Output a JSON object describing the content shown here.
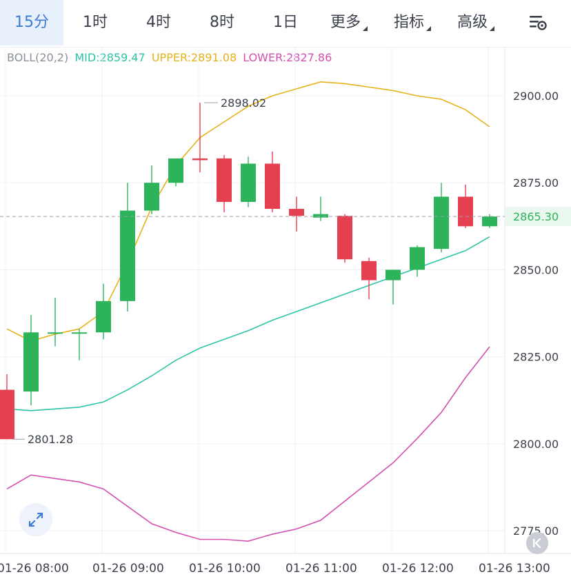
{
  "tabs": [
    {
      "label": "15分",
      "active": true,
      "dropdown": false
    },
    {
      "label": "1时",
      "active": false,
      "dropdown": false
    },
    {
      "label": "4时",
      "active": false,
      "dropdown": false
    },
    {
      "label": "8时",
      "active": false,
      "dropdown": false
    },
    {
      "label": "1日",
      "active": false,
      "dropdown": false
    },
    {
      "label": "更多",
      "active": false,
      "dropdown": true
    },
    {
      "label": "指标",
      "active": false,
      "dropdown": true
    },
    {
      "label": "高级",
      "active": false,
      "dropdown": true
    }
  ],
  "legend": {
    "name": "BOLL(20,2)",
    "mid": "MID:2859.47",
    "upper": "UPPER:2891.08",
    "lower": "LOWER:2827.86"
  },
  "colors": {
    "up": "#2db35a",
    "down": "#e5404f",
    "mid": "#2cc4a6",
    "upper": "#e6b21a",
    "lower": "#d34fb0",
    "accent": "#3a7bd5",
    "grid": "#eef0f4"
  },
  "icons": {
    "settings": "settings-gear-icon",
    "expand": "expand-arrows-icon",
    "back": "skip-back-icon"
  },
  "chart_data": {
    "type": "candlestick",
    "y_axis_labels": [
      "2900.00",
      "2875.00",
      "2865.30",
      "2850.00",
      "2825.00",
      "2800.00",
      "2775.00"
    ],
    "x_axis_labels": [
      "01-26 08:00",
      "01-26 09:00",
      "01-26 10:00",
      "01-26 11:00",
      "01-26 12:00",
      "01-26 13:00"
    ],
    "ylim": [
      2771,
      2926
    ],
    "last_price": "2865.30",
    "high_label": "2898.02",
    "low_label": "2801.28",
    "candles": [
      {
        "o": 2815.5,
        "h": 2820.0,
        "l": 2801.3,
        "c": 2801.3
      },
      {
        "o": 2815.0,
        "h": 2837.0,
        "l": 2811.0,
        "c": 2832.0
      },
      {
        "o": 2832.0,
        "h": 2842.0,
        "l": 2828.0,
        "c": 2832.0
      },
      {
        "o": 2832.0,
        "h": 2833.0,
        "l": 2824.0,
        "c": 2832.0
      },
      {
        "o": 2832.0,
        "h": 2846.0,
        "l": 2830.0,
        "c": 2841.0
      },
      {
        "o": 2841.0,
        "h": 2875.0,
        "l": 2838.0,
        "c": 2867.0
      },
      {
        "o": 2867.0,
        "h": 2880.0,
        "l": 2866.0,
        "c": 2875.0
      },
      {
        "o": 2875.0,
        "h": 2882.0,
        "l": 2874.0,
        "c": 2882.0
      },
      {
        "o": 2882.0,
        "h": 2898.02,
        "l": 2878.0,
        "c": 2881.5
      },
      {
        "o": 2882.0,
        "h": 2883.0,
        "l": 2866.5,
        "c": 2869.5
      },
      {
        "o": 2869.5,
        "h": 2882.5,
        "l": 2868.0,
        "c": 2880.5
      },
      {
        "o": 2880.5,
        "h": 2884.0,
        "l": 2866.5,
        "c": 2867.5
      },
      {
        "o": 2867.5,
        "h": 2871.0,
        "l": 2861.0,
        "c": 2865.5
      },
      {
        "o": 2865.0,
        "h": 2871.0,
        "l": 2864.0,
        "c": 2866.0
      },
      {
        "o": 2865.5,
        "h": 2866.0,
        "l": 2852.0,
        "c": 2853.0
      },
      {
        "o": 2852.5,
        "h": 2853.5,
        "l": 2841.5,
        "c": 2847.0
      },
      {
        "o": 2847.0,
        "h": 2850.0,
        "l": 2840.0,
        "c": 2850.0
      },
      {
        "o": 2850.0,
        "h": 2857.0,
        "l": 2848.0,
        "c": 2856.5
      },
      {
        "o": 2856.0,
        "h": 2875.0,
        "l": 2855.0,
        "c": 2871.0
      },
      {
        "o": 2871.0,
        "h": 2874.5,
        "l": 2862.0,
        "c": 2862.5
      },
      {
        "o": 2862.5,
        "h": 2866.0,
        "l": 2862.0,
        "c": 2865.3
      }
    ],
    "series": [
      {
        "name": "MID",
        "values": [
          2810,
          2809.5,
          2810,
          2810.5,
          2812,
          2815.5,
          2819.5,
          2824,
          2827.5,
          2830,
          2832.5,
          2835.5,
          2838,
          2840.5,
          2843,
          2845.5,
          2848,
          2850.5,
          2853,
          2855.5,
          2859.47
        ]
      },
      {
        "name": "UPPER",
        "values": [
          2833,
          2829.5,
          2831.5,
          2833,
          2838,
          2852,
          2868,
          2880,
          2888,
          2892.5,
          2897,
          2900,
          2902,
          2904,
          2903.5,
          2902.5,
          2901.5,
          2900,
          2899,
          2896,
          2891.08
        ]
      },
      {
        "name": "LOWER",
        "values": [
          2787,
          2791,
          2790,
          2789,
          2787,
          2782,
          2777,
          2774.5,
          2772.5,
          2772.5,
          2772,
          2774,
          2775.5,
          2778,
          2783.5,
          2789,
          2794.5,
          2801.5,
          2809,
          2819,
          2827.86
        ]
      }
    ]
  }
}
